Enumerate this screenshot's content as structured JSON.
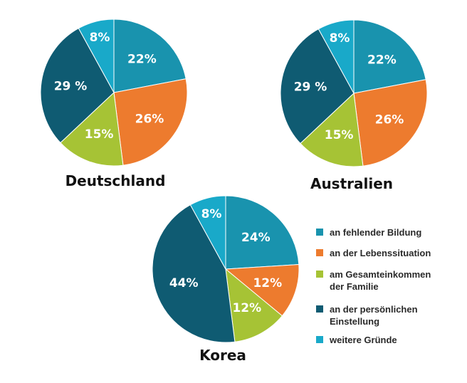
{
  "chart_data": {
    "type": "pie",
    "colors": {
      "an fehlender Bildung": "#1993AE",
      "an der Lebenssituation": "#ED7B2E",
      "am Gesamteinkommen der Familie": "#A6C335",
      "an der persönlichen Einstellung": "#0F5B72",
      "weitere Gründe": "#19A9C9"
    },
    "legend": {
      "placement": "right",
      "entries": [
        {
          "lines": [
            "an fehlender Bildung"
          ],
          "series": "an fehlender Bildung"
        },
        {
          "lines": [
            "an der Lebenssituation"
          ],
          "series": "an der Lebenssituation"
        },
        {
          "lines": [
            "am Gesamteinkommen",
            "der Familie"
          ],
          "series": "am Gesamteinkommen der Familie"
        },
        {
          "lines": [
            "an der persönlichen",
            "Einstellung"
          ],
          "series": "an der persönlichen Einstellung"
        },
        {
          "lines": [
            "weitere Gründe"
          ],
          "series": "weitere Gründe"
        }
      ]
    },
    "pies": [
      {
        "title": "Deutschland",
        "slices": [
          {
            "category": "an fehlender Bildung",
            "value": 22,
            "label": "22%"
          },
          {
            "category": "an der Lebenssituation",
            "value": 26,
            "label": "26%"
          },
          {
            "category": "am Gesamteinkommen der Familie",
            "value": 15,
            "label": "15%"
          },
          {
            "category": "an der persönlichen Einstellung",
            "value": 29,
            "label": "29 %"
          },
          {
            "category": "weitere Gründe",
            "value": 8,
            "label": "8%"
          }
        ]
      },
      {
        "title": "Australien",
        "slices": [
          {
            "category": "an fehlender Bildung",
            "value": 22,
            "label": "22%"
          },
          {
            "category": "an der Lebenssituation",
            "value": 26,
            "label": "26%"
          },
          {
            "category": "am Gesamteinkommen der Familie",
            "value": 15,
            "label": "15%"
          },
          {
            "category": "an der persönlichen Einstellung",
            "value": 29,
            "label": "29 %"
          },
          {
            "category": "weitere Gründe",
            "value": 8,
            "label": "8%"
          }
        ]
      },
      {
        "title": "Korea",
        "slices": [
          {
            "category": "an fehlender Bildung",
            "value": 24,
            "label": "24%"
          },
          {
            "category": "an der Lebenssituation",
            "value": 12,
            "label": "12%"
          },
          {
            "category": "am Gesamteinkommen der Familie",
            "value": 12,
            "label": "12%"
          },
          {
            "category": "an der persönlichen Einstellung",
            "value": 44,
            "label": "44%"
          },
          {
            "category": "weitere Gründe",
            "value": 8,
            "label": "8%"
          }
        ]
      }
    ]
  }
}
